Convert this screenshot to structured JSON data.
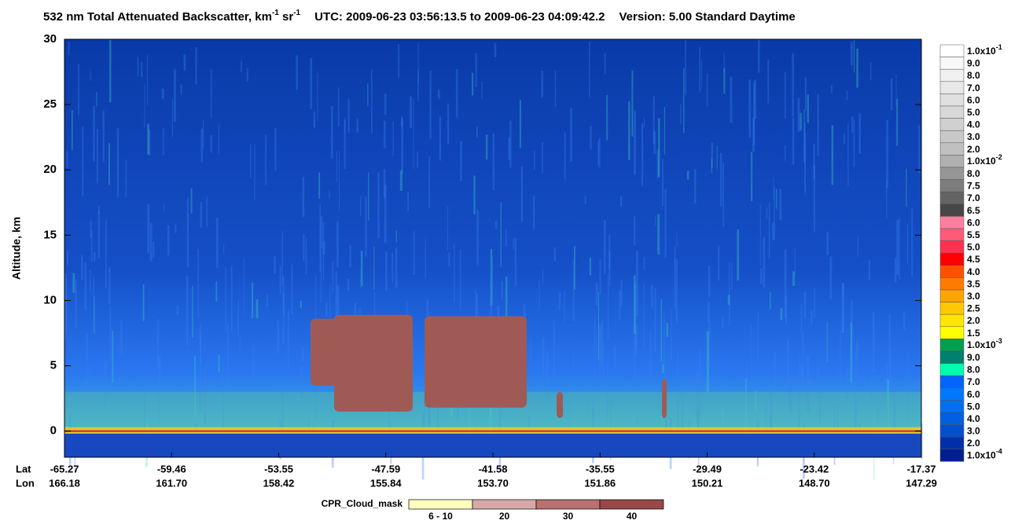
{
  "title": {
    "main": "532 nm Total Attenuated Backscatter, km",
    "exp1": "-1",
    "unit2": " sr",
    "exp2": "-1",
    "utc": "UTC:  2009-06-23 03:56:13.5  to  2009-06-23 04:09:42.2",
    "version": "Version: 5.00  Standard  Daytime"
  },
  "chart_data": {
    "type": "curtain",
    "ylabel": "Altitude, km",
    "ylim": [
      -2,
      30
    ],
    "yticks": [
      0,
      5,
      10,
      15,
      20,
      25,
      30
    ],
    "row_labels": [
      "Lat",
      "Lon"
    ],
    "lat": [
      "-65.27",
      "-59.46",
      "-53.55",
      "-47.59",
      "-41.58",
      "-35.55",
      "-29.49",
      "-23.42",
      "-17.37"
    ],
    "lon": [
      "166.18",
      "161.70",
      "158.42",
      "155.84",
      "153.70",
      "151.86",
      "150.21",
      "148.70",
      "147.29"
    ],
    "colorbar": {
      "labels": [
        {
          "text": "1.0x10",
          "sup": "-1"
        },
        "9.0",
        "8.0",
        "7.0",
        "6.0",
        "5.0",
        "4.0",
        "3.0",
        "2.0",
        {
          "text": "1.0x10",
          "sup": "-2"
        },
        "8.0",
        "7.5",
        "7.0",
        "6.5",
        "6.0",
        "5.5",
        "5.0",
        "4.5",
        "4.0",
        "3.5",
        "3.0",
        "2.5",
        "2.0",
        "1.5",
        {
          "text": "1.0x10",
          "sup": "-3"
        },
        "9.0",
        "8.0",
        "7.0",
        "6.0",
        "5.0",
        "4.0",
        "3.0",
        "2.0",
        {
          "text": "1.0x10",
          "sup": "-4"
        }
      ],
      "colors": [
        "#ffffff",
        "#f8f8f8",
        "#f0f0f0",
        "#e8e8e8",
        "#e0e0e0",
        "#d8d8d8",
        "#d0d0d0",
        "#c8c8c8",
        "#c0c0c0",
        "#b0b0b0",
        "#969696",
        "#7d7d7d",
        "#646464",
        "#474747",
        "#ff7ea0",
        "#ff5a78",
        "#ff3050",
        "#ff0000",
        "#ff5000",
        "#ff7a00",
        "#ffa500",
        "#ffc800",
        "#ffe600",
        "#ffff00",
        "#00a050",
        "#00806e",
        "#00ffaa",
        "#0064ff",
        "#0078ff",
        "#0070f0",
        "#0060e0",
        "#0050d0",
        "#0030a8",
        "#002090"
      ]
    },
    "cloud_mask": {
      "title": "CPR_Cloud_mask",
      "labels": [
        "6 - 10",
        "20",
        "30",
        "40"
      ],
      "colors": [
        "#ffffc0",
        "#d8a8a8",
        "#b87070",
        "#984848"
      ]
    }
  }
}
